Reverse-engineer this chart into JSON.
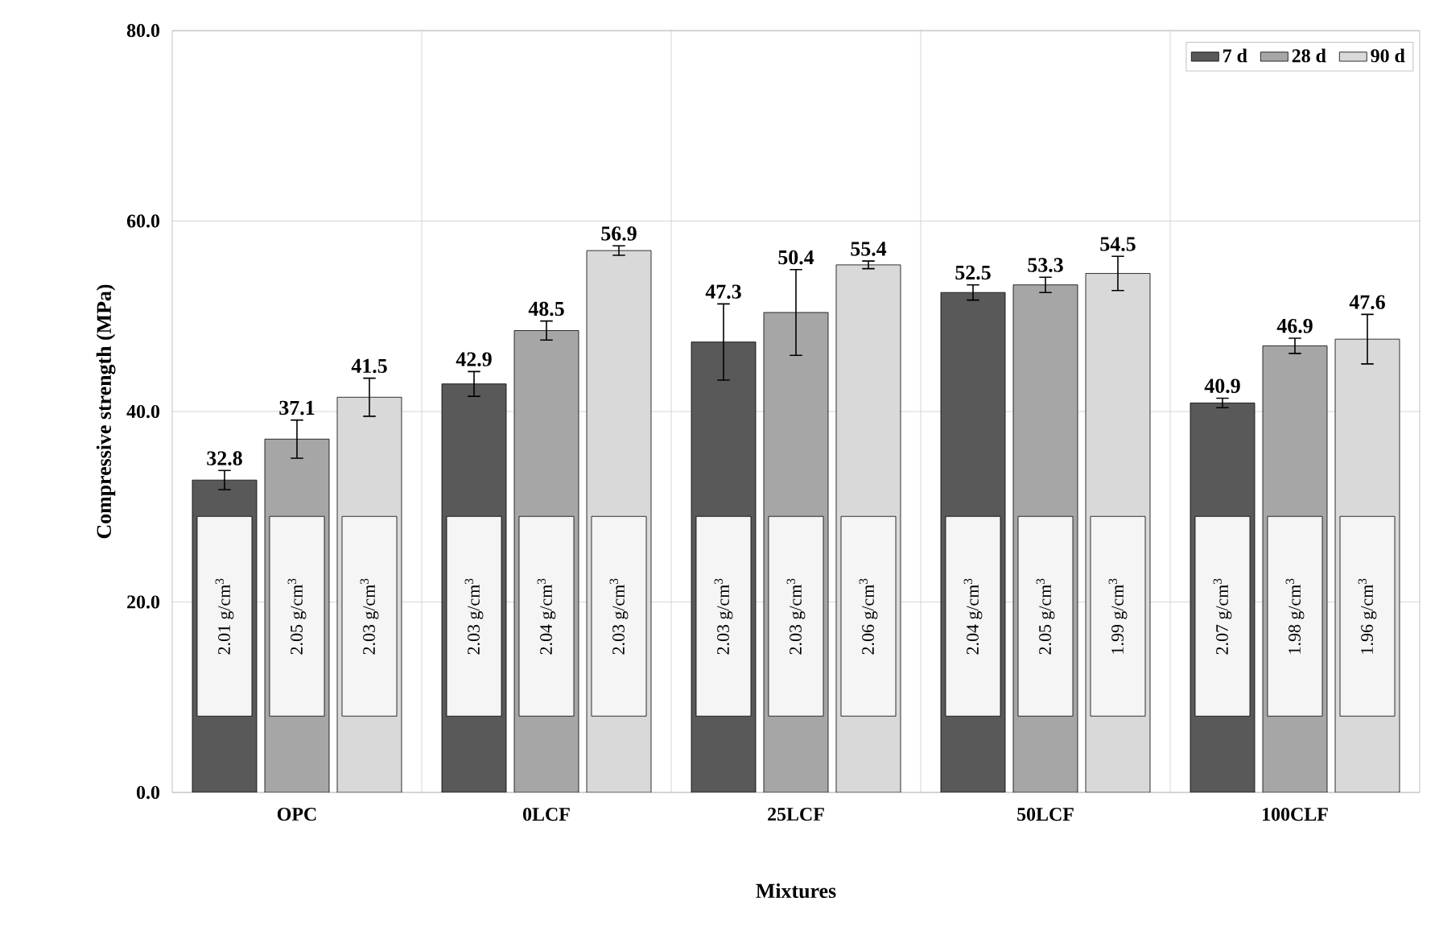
{
  "chart_data": {
    "type": "bar",
    "xlabel": "Mixtures",
    "ylabel": "Compressive strength (MPa)",
    "categories": [
      "OPC",
      "0LCF",
      "25LCF",
      "50LCF",
      "100CLF"
    ],
    "series": [
      {
        "name": "7 d",
        "color": "#595959",
        "values": [
          32.8,
          42.9,
          47.3,
          52.5,
          40.9
        ],
        "errors": [
          1.0,
          1.3,
          4.0,
          0.8,
          0.5
        ]
      },
      {
        "name": "28 d",
        "color": "#a6a6a6",
        "values": [
          37.1,
          48.5,
          50.4,
          53.3,
          46.9
        ],
        "errors": [
          2.0,
          1.0,
          4.5,
          0.8,
          0.8
        ]
      },
      {
        "name": "90 d",
        "color": "#d9d9d9",
        "values": [
          41.5,
          56.9,
          55.4,
          54.5,
          47.6
        ],
        "errors": [
          2.0,
          0.5,
          0.4,
          1.8,
          2.6
        ]
      }
    ],
    "ylim": [
      0,
      80
    ],
    "yticks": [
      {
        "value": 0,
        "label": "0.0"
      },
      {
        "value": 20,
        "label": "20.0"
      },
      {
        "value": 40,
        "label": "40.0"
      },
      {
        "value": 60,
        "label": "60.0"
      },
      {
        "value": 80,
        "label": "80.0"
      }
    ],
    "grid": true,
    "legend": "top right",
    "data_labels": true,
    "annotations": [
      "2.01 g/cm$^{3}$",
      "2.05 g/cm$^{3}$",
      "2.03 g/cm$^{3}$",
      "2.03 g/cm$^{3}$",
      "2.04 g/cm$^{3}$",
      "2.03 g/cm$^{3}$",
      "2.03 g/cm$^{3}$",
      "2.03 g/cm$^{3}$",
      "2.06 g/cm$^{3}$",
      "2.04 g/cm$^{3}$",
      "2.05 g/cm$^{3}$",
      "1.99 g/cm$^{3}$",
      "2.07 g/cm$^{3}$",
      "1.98 g/cm$^{3}$",
      "1.96 g/cm$^{3}$"
    ]
  }
}
